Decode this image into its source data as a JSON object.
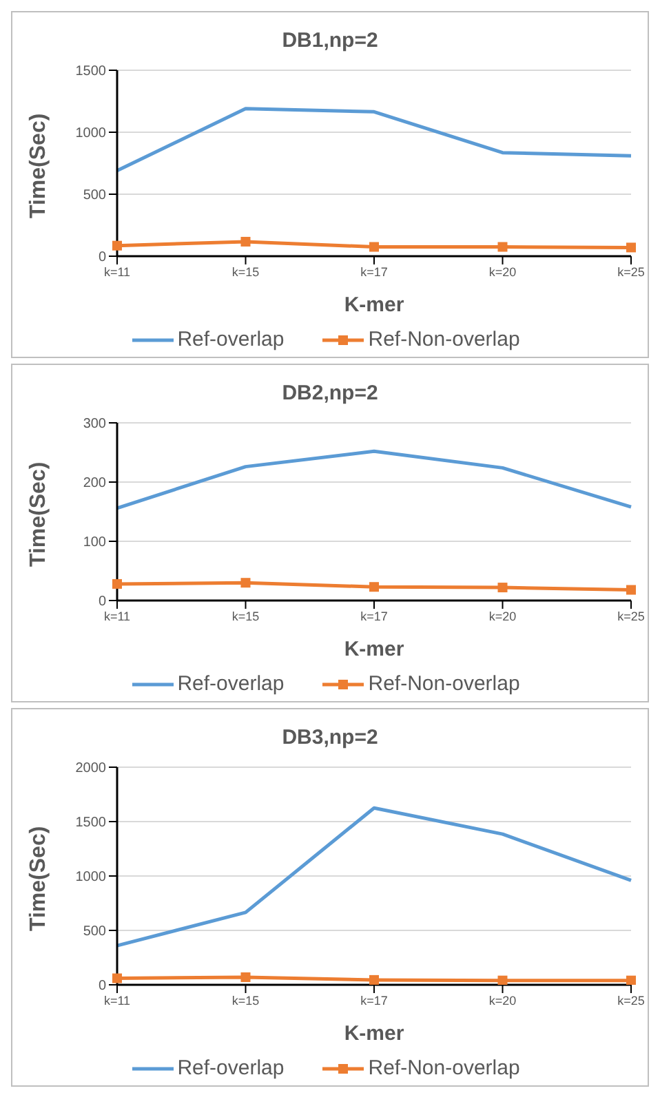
{
  "chart_data": [
    {
      "type": "line",
      "title": "DB1,np=2",
      "xlabel": "K-mer",
      "ylabel": "Time(Sec)",
      "categories": [
        "k=11",
        "k=15",
        "k=17",
        "k=20",
        "k=25"
      ],
      "series": [
        {
          "name": "Ref-overlap",
          "color": "#5b9bd5",
          "marker": "none",
          "values": [
            690,
            1190,
            1165,
            835,
            810
          ]
        },
        {
          "name": "Ref-Non-overlap",
          "color": "#ed7d31",
          "marker": "square",
          "values": [
            85,
            117,
            75,
            75,
            70
          ]
        }
      ],
      "ylim": [
        0,
        1500
      ],
      "yticks": [
        0,
        500,
        1000,
        1500
      ],
      "grid": "y",
      "legend": "bottom"
    },
    {
      "type": "line",
      "title": "DB2,np=2",
      "xlabel": "K-mer",
      "ylabel": "Time(Sec)",
      "categories": [
        "k=11",
        "k=15",
        "k=17",
        "k=20",
        "k=25"
      ],
      "series": [
        {
          "name": "Ref-overlap",
          "color": "#5b9bd5",
          "marker": "none",
          "values": [
            156,
            226,
            252,
            224,
            158
          ]
        },
        {
          "name": "Ref-Non-overlap",
          "color": "#ed7d31",
          "marker": "square",
          "values": [
            28,
            30,
            23,
            22,
            18
          ]
        }
      ],
      "ylim": [
        0,
        300
      ],
      "yticks": [
        0,
        100,
        200,
        300
      ],
      "grid": "y",
      "legend": "bottom"
    },
    {
      "type": "line",
      "title": "DB3,np=2",
      "xlabel": "K-mer",
      "ylabel": "Time(Sec)",
      "categories": [
        "k=11",
        "k=15",
        "k=17",
        "k=20",
        "k=25"
      ],
      "series": [
        {
          "name": "Ref-overlap",
          "color": "#5b9bd5",
          "marker": "none",
          "values": [
            360,
            665,
            1625,
            1385,
            960
          ]
        },
        {
          "name": "Ref-Non-overlap",
          "color": "#ed7d31",
          "marker": "square",
          "values": [
            60,
            70,
            45,
            40,
            40
          ]
        }
      ],
      "ylim": [
        0,
        2000
      ],
      "yticks": [
        0,
        500,
        1000,
        1500,
        2000
      ],
      "grid": "y",
      "legend": "bottom"
    }
  ]
}
